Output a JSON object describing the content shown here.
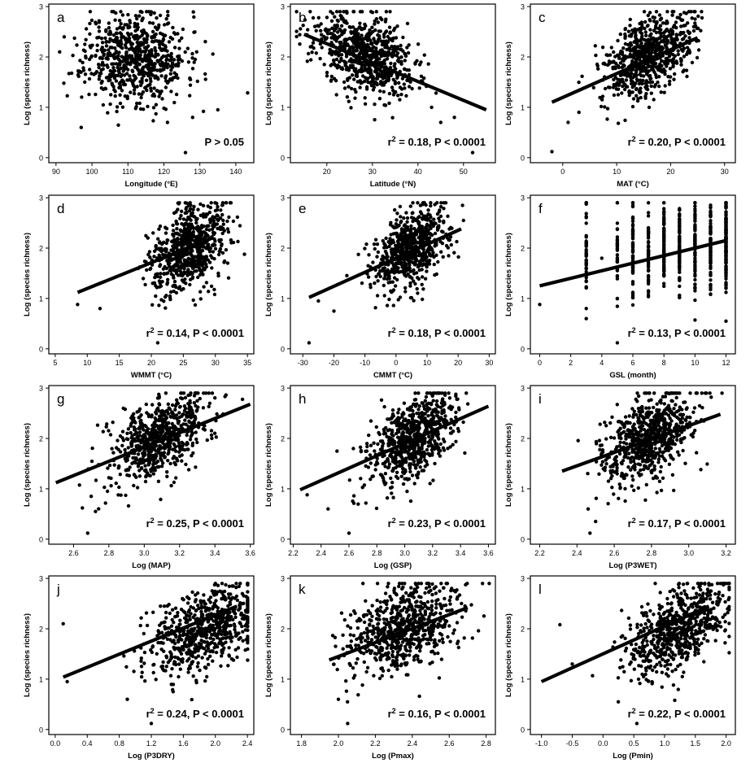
{
  "figure_title": "",
  "chart_data": [
    {
      "type": "scatter",
      "letter": "a",
      "xlabel": "Longitude  (°E)",
      "ylabel": "Log (species richness)",
      "xlim": [
        88,
        145
      ],
      "ylim": [
        -0.1,
        3.05
      ],
      "xticks": [
        "90",
        "100",
        "110",
        "120",
        "130",
        "140"
      ],
      "xtick_values": [
        90,
        100,
        110,
        120,
        130,
        140
      ],
      "yticks": [
        "0",
        "1",
        "2",
        "3"
      ],
      "cx": 112,
      "sx": 7,
      "cy": 2.0,
      "sy": 0.45,
      "corr": 0,
      "seed": 11,
      "n": 700,
      "fit": null,
      "stat_main": "P > 0.05",
      "stat_rest": "",
      "sup": "",
      "outliers": [
        [
          91,
          2.1
        ],
        [
          97,
          0.6
        ],
        [
          126,
          0.1
        ],
        [
          131,
          0.92
        ],
        [
          128,
          0.8
        ],
        [
          135,
          0.95
        ],
        [
          121,
          0.7
        ]
      ]
    },
    {
      "type": "scatter",
      "letter": "b",
      "xlabel": "Latitude  (°N)",
      "ylabel": "Log (species richness)",
      "xlim": [
        12,
        57
      ],
      "ylim": [
        -0.1,
        3.05
      ],
      "xticks": [
        "20",
        "30",
        "40",
        "50"
      ],
      "xtick_values": [
        20,
        30,
        40,
        50
      ],
      "yticks": [
        "0",
        "1",
        "2",
        "3"
      ],
      "cx": 28,
      "sx": 5.5,
      "cy": 2.05,
      "sy": 0.42,
      "corr": -0.4,
      "seed": 23,
      "n": 700,
      "fit": {
        "x1": 15,
        "y1": 2.45,
        "x2": 55,
        "y2": 0.95
      },
      "stat_main": "r",
      "sup": "2",
      "stat_rest": " = 0.18, P < 0.0001",
      "outliers": [
        [
          52,
          0.1
        ],
        [
          45,
          0.7
        ],
        [
          43,
          1.0
        ],
        [
          48,
          0.8
        ]
      ]
    },
    {
      "type": "scatter",
      "letter": "c",
      "xlabel": "MAT (°C)",
      "ylabel": "Log (species richness)",
      "xlim": [
        -6,
        32
      ],
      "ylim": [
        -0.1,
        3.05
      ],
      "xticks": [
        "0",
        "10",
        "20",
        "30"
      ],
      "xtick_values": [
        0,
        10,
        20,
        30
      ],
      "yticks": [
        "0",
        "1",
        "2",
        "3"
      ],
      "cx": 16,
      "sx": 4,
      "cy": 2.05,
      "sy": 0.42,
      "corr": 0.45,
      "seed": 37,
      "n": 700,
      "fit": {
        "x1": -2,
        "y1": 1.1,
        "x2": 25,
        "y2": 2.38
      },
      "stat_main": "r",
      "sup": "2",
      "stat_rest": " = 0.20, P < 0.0001",
      "outliers": [
        [
          -2,
          0.12
        ],
        [
          1,
          0.7
        ],
        [
          3,
          0.9
        ]
      ]
    },
    {
      "type": "scatter",
      "letter": "d",
      "xlabel": "WMMT (°C)",
      "ylabel": "Log (species richness)",
      "xlim": [
        4,
        36
      ],
      "ylim": [
        -0.1,
        3.05
      ],
      "xticks": [
        "5",
        "10",
        "15",
        "20",
        "25",
        "30",
        "35"
      ],
      "xtick_values": [
        5,
        10,
        15,
        20,
        25,
        30,
        35
      ],
      "yticks": [
        "0",
        "1",
        "2",
        "3"
      ],
      "cx": 26,
      "sx": 3,
      "cy": 2.0,
      "sy": 0.45,
      "corr": 0.4,
      "seed": 41,
      "n": 700,
      "fit": {
        "x1": 8.5,
        "y1": 1.12,
        "x2": 29.5,
        "y2": 2.2
      },
      "stat_main": "r",
      "sup": "2",
      "stat_rest": " = 0.14, P < 0.0001",
      "outliers": [
        [
          21,
          0.12
        ],
        [
          8.5,
          0.88
        ],
        [
          12,
          0.8
        ]
      ]
    },
    {
      "type": "scatter",
      "letter": "e",
      "xlabel": "CMMT  (°C)",
      "ylabel": "Log (species richness)",
      "xlim": [
        -34,
        32
      ],
      "ylim": [
        -0.1,
        3.05
      ],
      "xticks": [
        "-30",
        "-20",
        "-10",
        "0",
        "10",
        "20",
        "30"
      ],
      "xtick_values": [
        -30,
        -20,
        -10,
        0,
        10,
        20,
        30
      ],
      "yticks": [
        "0",
        "1",
        "2",
        "3"
      ],
      "cx": 5,
      "sx": 6,
      "cy": 2.0,
      "sy": 0.42,
      "corr": 0.45,
      "seed": 53,
      "n": 700,
      "fit": {
        "x1": -28,
        "y1": 1.02,
        "x2": 21,
        "y2": 2.38
      },
      "stat_main": "r",
      "sup": "2",
      "stat_rest": " = 0.18, P < 0.0001",
      "outliers": [
        [
          -28,
          0.12
        ],
        [
          -25,
          0.95
        ],
        [
          -20,
          0.75
        ]
      ]
    },
    {
      "type": "scatter",
      "letter": "f",
      "xlabel": "GSL (month)",
      "ylabel": "Log (species richness)",
      "xlim": [
        -0.6,
        12.6
      ],
      "ylim": [
        -0.1,
        3.05
      ],
      "xticks": [
        "0",
        "2",
        "4",
        "6",
        "8",
        "10",
        "12"
      ],
      "xtick_values": [
        0,
        2,
        4,
        6,
        8,
        10,
        12
      ],
      "yticks": [
        "0",
        "1",
        "2",
        "3"
      ],
      "discrete": [
        3,
        5,
        6,
        7,
        8,
        9,
        10,
        11,
        12
      ],
      "cx": 9,
      "sx": 2,
      "cy": 2.0,
      "sy": 0.45,
      "corr": 0.3,
      "seed": 67,
      "n": 700,
      "fit": {
        "x1": 0,
        "y1": 1.25,
        "x2": 12,
        "y2": 2.15
      },
      "stat_main": "r",
      "sup": "2",
      "stat_rest": " = 0.13, P < 0.0001",
      "outliers": [
        [
          0,
          0.88
        ],
        [
          5,
          0.12
        ],
        [
          3,
          0.6
        ],
        [
          4,
          1.8
        ]
      ]
    },
    {
      "type": "scatter",
      "letter": "g",
      "xlabel": "Log (MAP)",
      "ylabel": "Log (species richness)",
      "xlim": [
        2.46,
        3.62
      ],
      "ylim": [
        -0.1,
        3.05
      ],
      "xticks": [
        "2.6",
        "2.8",
        "3.0",
        "3.2",
        "3.4",
        "3.6"
      ],
      "xtick_values": [
        2.6,
        2.8,
        3.0,
        3.2,
        3.4,
        3.6
      ],
      "yticks": [
        "0",
        "1",
        "2",
        "3"
      ],
      "cx": 3.08,
      "sx": 0.14,
      "cy": 2.0,
      "sy": 0.45,
      "corr": 0.5,
      "seed": 71,
      "n": 700,
      "fit": {
        "x1": 2.5,
        "y1": 1.12,
        "x2": 3.6,
        "y2": 2.68
      },
      "stat_main": "r",
      "sup": "2",
      "stat_rest": " = 0.25, P < 0.0001",
      "outliers": [
        [
          2.68,
          0.12
        ],
        [
          2.65,
          0.62
        ],
        [
          2.7,
          0.85
        ]
      ]
    },
    {
      "type": "scatter",
      "letter": "h",
      "xlabel": "Log (GSP)",
      "ylabel": "Log (species richness)",
      "xlim": [
        2.18,
        3.65
      ],
      "ylim": [
        -0.1,
        3.05
      ],
      "xticks": [
        "2.2",
        "2.4",
        "2.6",
        "2.8",
        "3.0",
        "3.2",
        "3.4",
        "3.6"
      ],
      "xtick_values": [
        2.2,
        2.4,
        2.6,
        2.8,
        3.0,
        3.2,
        3.4,
        3.6
      ],
      "yticks": [
        "0",
        "1",
        "2",
        "3"
      ],
      "cx": 3.05,
      "sx": 0.16,
      "cy": 2.0,
      "sy": 0.45,
      "corr": 0.5,
      "seed": 83,
      "n": 700,
      "fit": {
        "x1": 2.25,
        "y1": 0.98,
        "x2": 3.6,
        "y2": 2.64
      },
      "stat_main": "r",
      "sup": "2",
      "stat_rest": " = 0.23, P < 0.0001",
      "outliers": [
        [
          2.6,
          0.12
        ],
        [
          2.3,
          0.88
        ],
        [
          2.45,
          0.6
        ]
      ]
    },
    {
      "type": "scatter",
      "letter": "i",
      "xlabel": "Log (P3WET)",
      "ylabel": "Log (species richness)",
      "xlim": [
        2.15,
        3.25
      ],
      "ylim": [
        -0.1,
        3.05
      ],
      "xticks": [
        "2.2",
        "2.4",
        "2.6",
        "2.8",
        "3.0",
        "3.2"
      ],
      "xtick_values": [
        2.2,
        2.4,
        2.6,
        2.8,
        3.0,
        3.2
      ],
      "yticks": [
        "0",
        "1",
        "2",
        "3"
      ],
      "cx": 2.78,
      "sx": 0.13,
      "cy": 2.0,
      "sy": 0.45,
      "corr": 0.42,
      "seed": 97,
      "n": 700,
      "fit": {
        "x1": 2.32,
        "y1": 1.35,
        "x2": 3.17,
        "y2": 2.48
      },
      "stat_main": "r",
      "sup": "2",
      "stat_rest": " = 0.17, P < 0.0001",
      "outliers": [
        [
          2.47,
          0.12
        ],
        [
          2.5,
          0.35
        ],
        [
          2.46,
          0.6
        ]
      ]
    },
    {
      "type": "scatter",
      "letter": "j",
      "xlabel": "Log (P3DRY)",
      "ylabel": "Log (species richness)",
      "xlim": [
        -0.08,
        2.48
      ],
      "ylim": [
        -0.1,
        3.05
      ],
      "xticks": [
        "0.0",
        "0.4",
        "0.8",
        "1.2",
        "1.6",
        "2.0",
        "2.4"
      ],
      "xtick_values": [
        0,
        0.4,
        0.8,
        1.2,
        1.6,
        2.0,
        2.4
      ],
      "yticks": [
        "0",
        "1",
        "2",
        "3"
      ],
      "cx": 1.85,
      "sx": 0.35,
      "cy": 2.0,
      "sy": 0.45,
      "corr": 0.5,
      "seed": 101,
      "n": 700,
      "fit": {
        "x1": 0.1,
        "y1": 1.04,
        "x2": 2.27,
        "y2": 2.45
      },
      "stat_main": "r",
      "sup": "2",
      "stat_rest": " = 0.24, P < 0.0001",
      "outliers": [
        [
          0.1,
          2.1
        ],
        [
          1.2,
          0.12
        ],
        [
          0.15,
          0.95
        ],
        [
          0.9,
          0.6
        ]
      ]
    },
    {
      "type": "scatter",
      "letter": "k",
      "xlabel": "Log (Pmax)",
      "ylabel": "Log (species richness)",
      "xlim": [
        1.74,
        2.85
      ],
      "ylim": [
        -0.1,
        3.05
      ],
      "xticks": [
        "1.8",
        "2.0",
        "2.2",
        "2.4",
        "2.6",
        "2.8"
      ],
      "xtick_values": [
        1.8,
        2.0,
        2.2,
        2.4,
        2.6,
        2.8
      ],
      "yticks": [
        "0",
        "1",
        "2",
        "3"
      ],
      "cx": 2.35,
      "sx": 0.15,
      "cy": 2.0,
      "sy": 0.45,
      "corr": 0.4,
      "seed": 113,
      "n": 700,
      "fit": {
        "x1": 1.95,
        "y1": 1.38,
        "x2": 2.7,
        "y2": 2.42
      },
      "stat_main": "r",
      "sup": "2",
      "stat_rest": " = 0.16, P < 0.0001",
      "outliers": [
        [
          2.05,
          0.12
        ],
        [
          2.0,
          0.6
        ]
      ]
    },
    {
      "type": "scatter",
      "letter": "l",
      "xlabel": "Log (Pmin)",
      "ylabel": "Log (species richness)",
      "xlim": [
        -1.18,
        2.15
      ],
      "ylim": [
        -0.1,
        3.05
      ],
      "xticks": [
        "-1.0",
        "-0.5",
        "0.0",
        "0.5",
        "1.0",
        "1.5",
        "2.0"
      ],
      "xtick_values": [
        -1,
        -0.5,
        0,
        0.5,
        1,
        1.5,
        2
      ],
      "yticks": [
        "0",
        "1",
        "2",
        "3"
      ],
      "cx": 1.25,
      "sx": 0.4,
      "cy": 2.0,
      "sy": 0.45,
      "corr": 0.48,
      "seed": 127,
      "n": 700,
      "fit": {
        "x1": -1.0,
        "y1": 0.95,
        "x2": 1.72,
        "y2": 2.45
      },
      "stat_main": "r",
      "sup": "2",
      "stat_rest": " = 0.22, P < 0.0001",
      "outliers": [
        [
          0.55,
          0.12
        ],
        [
          -0.7,
          2.08
        ],
        [
          -0.5,
          1.3
        ]
      ]
    }
  ]
}
